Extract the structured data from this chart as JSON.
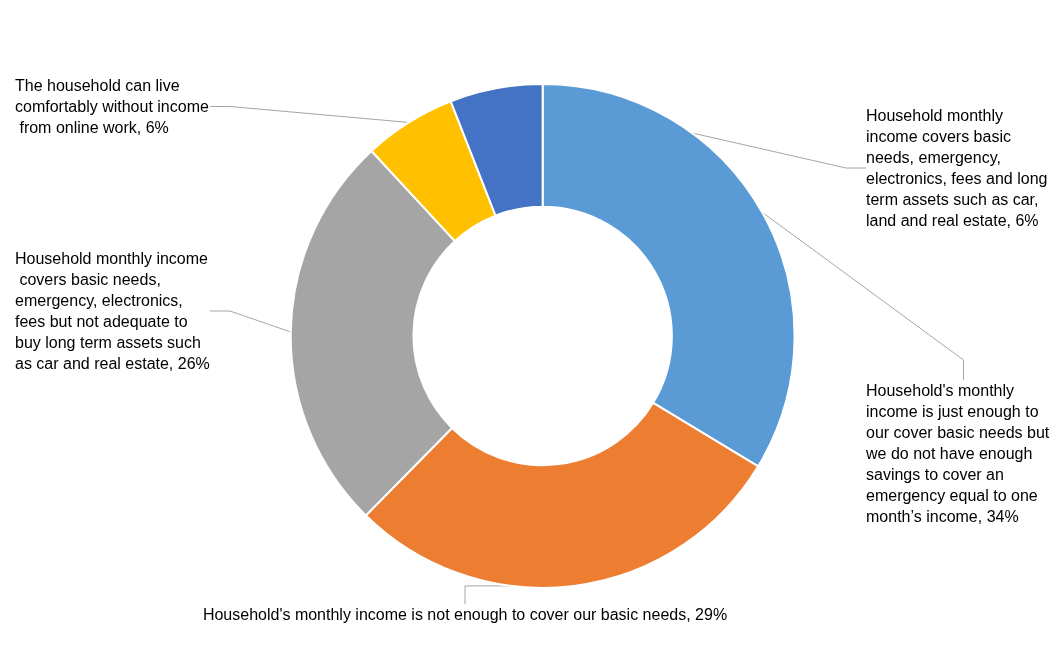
{
  "chart_data": {
    "type": "donut",
    "categories": [
      "Household's monthly income is just enough to our cover basic needs but we do not have enough savings to cover an emergency equal to one month’s income",
      "Household's monthly income is not enough to cover our basic needs",
      "Household monthly income covers basic needs, emergency, electronics, fees but not adequate to buy long term assets such as car and real estate",
      "The household can live comfortably without income from online work",
      "Household monthly income covers basic needs, emergency, electronics, fees and long term assets such as car, land and real estate"
    ],
    "values": [
      34,
      29,
      26,
      6,
      6
    ],
    "value_labels": [
      "34%",
      "29%",
      "26%",
      "6%",
      "6%"
    ],
    "colors": [
      "#5b9bd5",
      "#ed7d31",
      "#a5a5a5",
      "#ffc000",
      "#4472c4"
    ],
    "legend": false
  }
}
